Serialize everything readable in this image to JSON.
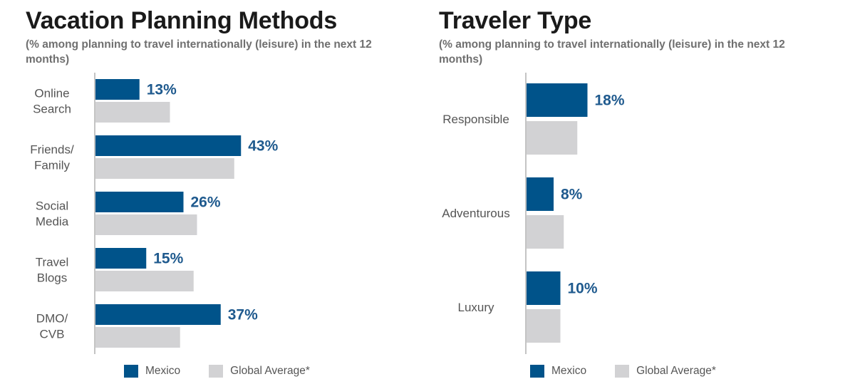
{
  "colors": {
    "mexico": "#00538a",
    "global": "#d2d2d4",
    "axis": "#888888",
    "label": "#555555",
    "data_label": "#1f5a8e"
  },
  "chart_data": [
    {
      "type": "bar",
      "orientation": "horizontal",
      "title": "Vacation Planning Methods",
      "subtitle": "(% among planning to travel internationally (leisure) in the next 12 months)",
      "categories": [
        "Online Search",
        "Friends/ Family",
        "Social Media",
        "Travel Blogs",
        "DMO/ CVB"
      ],
      "category_lines": [
        [
          "Online",
          "Search"
        ],
        [
          "Friends/",
          "Family"
        ],
        [
          "Social",
          "Media"
        ],
        [
          "Travel",
          "Blogs"
        ],
        [
          "DMO/",
          "CVB"
        ]
      ],
      "series": [
        {
          "name": "Mexico",
          "values": [
            13,
            43,
            26,
            15,
            37
          ],
          "labels": [
            "13%",
            "43%",
            "26%",
            "15%",
            "37%"
          ]
        },
        {
          "name": "Global Average*",
          "values": [
            22,
            41,
            30,
            29,
            25
          ]
        }
      ],
      "xlim": [
        0,
        60
      ],
      "grid": false,
      "legend": "bottom"
    },
    {
      "type": "bar",
      "orientation": "horizontal",
      "title": "Traveler Type",
      "subtitle": "(% among planning to travel internationally (leisure) in the next 12 months)",
      "categories": [
        "Responsible",
        "Adventurous",
        "Luxury"
      ],
      "category_lines": [
        [
          "Responsible"
        ],
        [
          "Adventurous"
        ],
        [
          "Luxury"
        ]
      ],
      "series": [
        {
          "name": "Mexico",
          "values": [
            18,
            8,
            10
          ],
          "labels": [
            "18%",
            "8%",
            "10%"
          ]
        },
        {
          "name": "Global Average*",
          "values": [
            15,
            11,
            10
          ]
        }
      ],
      "xlim": [
        0,
        40
      ],
      "grid": false,
      "legend": "bottom"
    }
  ]
}
